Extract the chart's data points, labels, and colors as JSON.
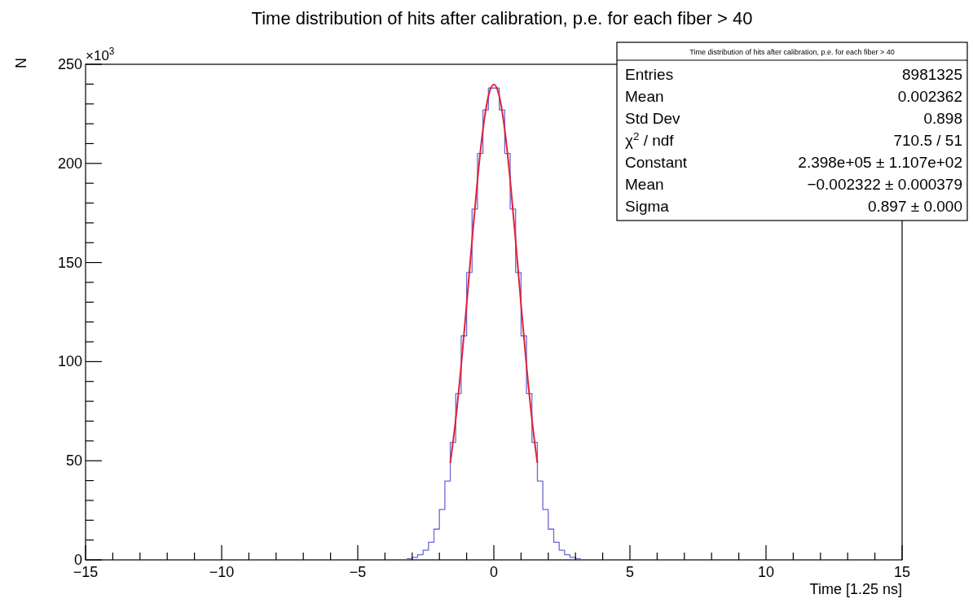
{
  "chart_data": {
    "type": "histogram",
    "title": "Time distribution of hits after calibration, p.e. for each fiber > 40",
    "xlabel": "Time [1.25 ns]",
    "ylabel": "N",
    "bins": [
      -3.2,
      -3.0,
      -2.8,
      -2.6,
      -2.4,
      -2.2,
      -2.0,
      -1.8,
      -1.6,
      -1.4,
      -1.2,
      -1.0,
      -0.8,
      -0.6,
      -0.4,
      -0.2,
      0,
      0.2,
      0.4,
      0.6,
      0.8,
      1.0,
      1.2,
      1.4,
      1.6,
      1.8,
      2.0,
      2.2,
      2.4,
      2.6,
      2.8,
      3.0,
      3.2
    ],
    "values": [
      0.6,
      1.3,
      2.6,
      4.9,
      8.9,
      15.5,
      25.4,
      39.8,
      59.3,
      83.9,
      113,
      145,
      177,
      205,
      227,
      238,
      238,
      227,
      205,
      177,
      145,
      113,
      83.9,
      59.3,
      39.8,
      25.4,
      15.5,
      8.9,
      4.9,
      2.6,
      1.3,
      0.6
    ],
    "color": "#6a6ad0",
    "series": [
      {
        "type": "line",
        "color": "#e0203a",
        "x": [
          -1.6,
          -1.4,
          -1.2,
          -1.0,
          -0.8,
          -0.6,
          -0.4,
          -0.2,
          0,
          0.2,
          0.4,
          0.6,
          0.8,
          1.0,
          1.2,
          1.4,
          1.6
        ],
        "values": [
          48.9,
          70.9,
          98,
          128.8,
          161.1,
          191.7,
          217.1,
          233.9,
          239.8,
          233.9,
          217.1,
          191.7,
          161.1,
          128.8,
          98,
          70.9,
          48.9
        ]
      }
    ],
    "xlim": [
      -15,
      15
    ],
    "ylim": [
      0,
      250
    ],
    "xticks": [
      -15,
      {
        "value": -14,
        "label": null
      },
      {
        "value": -13,
        "label": null
      },
      {
        "value": -12,
        "label": null
      },
      {
        "value": -11,
        "label": null
      },
      -10,
      {
        "value": -9,
        "label": null
      },
      {
        "value": -8,
        "label": null
      },
      {
        "value": -7,
        "label": null
      },
      {
        "value": -6,
        "label": null
      },
      -5,
      {
        "value": -4,
        "label": null
      },
      {
        "value": -3,
        "label": null
      },
      {
        "value": -2,
        "label": null
      },
      {
        "value": -1,
        "label": null
      },
      0,
      {
        "value": 1,
        "label": null
      },
      {
        "value": 2,
        "label": null
      },
      {
        "value": 3,
        "label": null
      },
      {
        "value": 4,
        "label": null
      },
      5,
      {
        "value": 6,
        "label": null
      },
      {
        "value": 7,
        "label": null
      },
      {
        "value": 8,
        "label": null
      },
      {
        "value": 9,
        "label": null
      },
      10,
      {
        "value": 11,
        "label": null
      },
      {
        "value": 12,
        "label": null
      },
      {
        "value": 13,
        "label": null
      },
      {
        "value": 14,
        "label": null
      },
      15
    ],
    "yticks": [
      0,
      {
        "value": 10,
        "label": null
      },
      {
        "value": 20,
        "label": null
      },
      {
        "value": 30,
        "label": null
      },
      {
        "value": 40,
        "label": null
      },
      50,
      {
        "value": 60,
        "label": null
      },
      {
        "value": 70,
        "label": null
      },
      {
        "value": 80,
        "label": null
      },
      {
        "value": 90,
        "label": null
      },
      100,
      {
        "value": 110,
        "label": null
      },
      {
        "value": 120,
        "label": null
      },
      {
        "value": 130,
        "label": null
      },
      {
        "value": 140,
        "label": null
      },
      150,
      {
        "value": 160,
        "label": null
      },
      {
        "value": 170,
        "label": null
      },
      {
        "value": 180,
        "label": null
      },
      {
        "value": 190,
        "label": null
      },
      200,
      {
        "value": 210,
        "label": null
      },
      {
        "value": 220,
        "label": null
      },
      {
        "value": 230,
        "label": null
      },
      {
        "value": 240,
        "label": null
      },
      250
    ],
    "annotations": [
      "×10$^{3}$",
      "Time distribution of hits after calibration, p.e. for each fiber > 40",
      "Entries",
      "8981325",
      "Mean",
      "0.002362",
      "Std Dev",
      "0.898",
      "χ$^{2}$ / ndf",
      "710.5 / 51",
      "Constant",
      "2.398e+05 ± 1.107e+02",
      "Mean",
      "−0.002322 ± 0.000379",
      "Sigma",
      "0.897 ± 0.000"
    ]
  }
}
